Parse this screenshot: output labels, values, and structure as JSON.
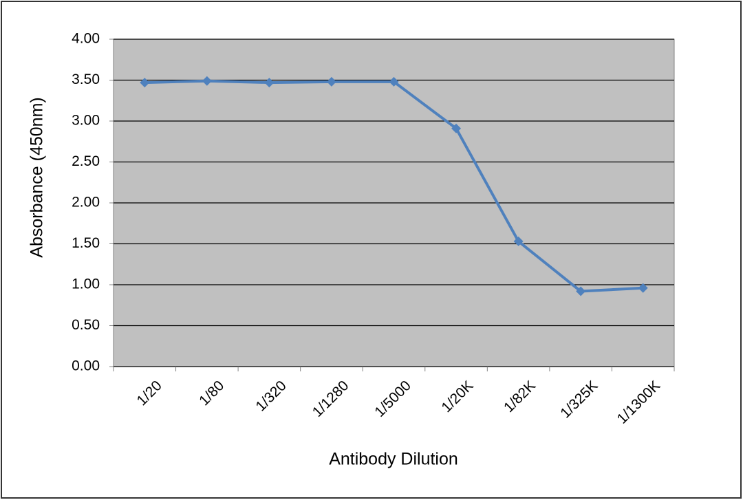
{
  "chart_data": {
    "type": "line",
    "x_label": "Antibody Dilution",
    "y_label": "Absorbance (450nm)",
    "categories": [
      "1/20",
      "1/80",
      "1/320",
      "1/1280",
      "1/5000",
      "1/20K",
      "1/82K",
      "1/325K",
      "1/1300K"
    ],
    "values": [
      3.47,
      3.49,
      3.47,
      3.48,
      3.48,
      2.91,
      1.53,
      0.92,
      0.96
    ],
    "color": "#4f81bd",
    "ylim": [
      0,
      4
    ],
    "yticks": [
      {
        "value": 0,
        "label": "0.00"
      },
      {
        "value": 0.5,
        "label": "0.50"
      },
      {
        "value": 1,
        "label": "1.00"
      },
      {
        "value": 1.5,
        "label": "1.50"
      },
      {
        "value": 2,
        "label": "2.00"
      },
      {
        "value": 2.5,
        "label": "2.50"
      },
      {
        "value": 3,
        "label": "3.00"
      },
      {
        "value": 3.5,
        "label": "3.50"
      },
      {
        "value": 4,
        "label": "4.00"
      }
    ],
    "grid": true
  }
}
